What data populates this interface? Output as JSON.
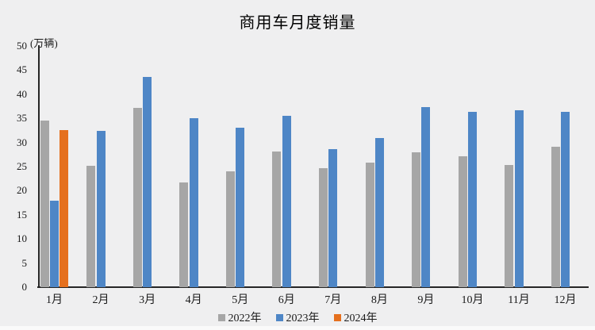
{
  "chart": {
    "title": "商用车月度销量",
    "y_unit": "(万辆)",
    "colors": {
      "series_2022": "#a6a6a6",
      "series_2023": "#4e86c6",
      "series_2024": "#e5701e",
      "axis": "#262626",
      "background": "#efeff0"
    }
  },
  "chart_data": {
    "type": "bar",
    "title": "商用车月度销量",
    "xlabel": "",
    "ylabel": "(万辆)",
    "categories": [
      "1月",
      "2月",
      "3月",
      "4月",
      "5月",
      "6月",
      "7月",
      "8月",
      "9月",
      "10月",
      "11月",
      "12月"
    ],
    "series": [
      {
        "name": "2022年",
        "color": "#a6a6a6",
        "values": [
          34.5,
          25.1,
          37.2,
          21.7,
          24.0,
          28.1,
          24.6,
          25.9,
          27.9,
          27.2,
          25.3,
          29.1
        ]
      },
      {
        "name": "2023年",
        "color": "#4e86c6",
        "values": [
          18.0,
          32.4,
          43.6,
          35.0,
          33.1,
          35.6,
          28.7,
          31.0,
          37.3,
          36.4,
          36.7,
          36.4
        ]
      },
      {
        "name": "2024年",
        "color": "#e5701e",
        "values": [
          32.5,
          null,
          null,
          null,
          null,
          null,
          null,
          null,
          null,
          null,
          null,
          null
        ]
      }
    ],
    "ylim": [
      0,
      50
    ],
    "ytick_step": 5,
    "grid": false,
    "legend_position": "bottom"
  }
}
